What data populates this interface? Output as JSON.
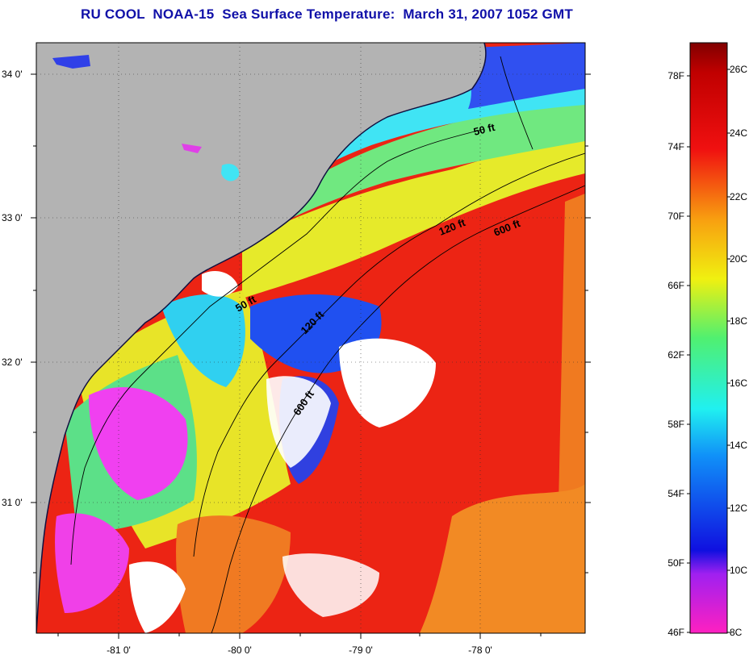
{
  "title": "RU COOL  NOAA-15  Sea Surface Temperature:  March 31, 2007 1052 GMT",
  "map": {
    "lat_labels": [
      "34 0'",
      "33 0'",
      "32 0'",
      "31 0'"
    ],
    "lon_labels": [
      "-81 0'",
      "-80 0'",
      "-79 0'",
      "-78 0'"
    ],
    "contours": [
      "50 ft",
      "120 ft",
      "600 ft",
      "50 ft",
      "120 ft",
      "600 ft"
    ],
    "colors": {
      "land": "#b3b3b3",
      "cloud": "#ffffff",
      "warm": "#e81010",
      "orange": "#f07020",
      "yellow": "#e8e820",
      "green": "#60e080",
      "cyan": "#40e8f0",
      "blue": "#2040f0",
      "magenta": "#f040f0"
    }
  },
  "colorbar": {
    "fahrenheit": [
      "78F",
      "74F",
      "70F",
      "66F",
      "62F",
      "58F",
      "54F",
      "50F",
      "46F"
    ],
    "celsius": [
      "26C",
      "24C",
      "22C",
      "20C",
      "18C",
      "16C",
      "14C",
      "12C",
      "10C",
      "8C"
    ]
  }
}
